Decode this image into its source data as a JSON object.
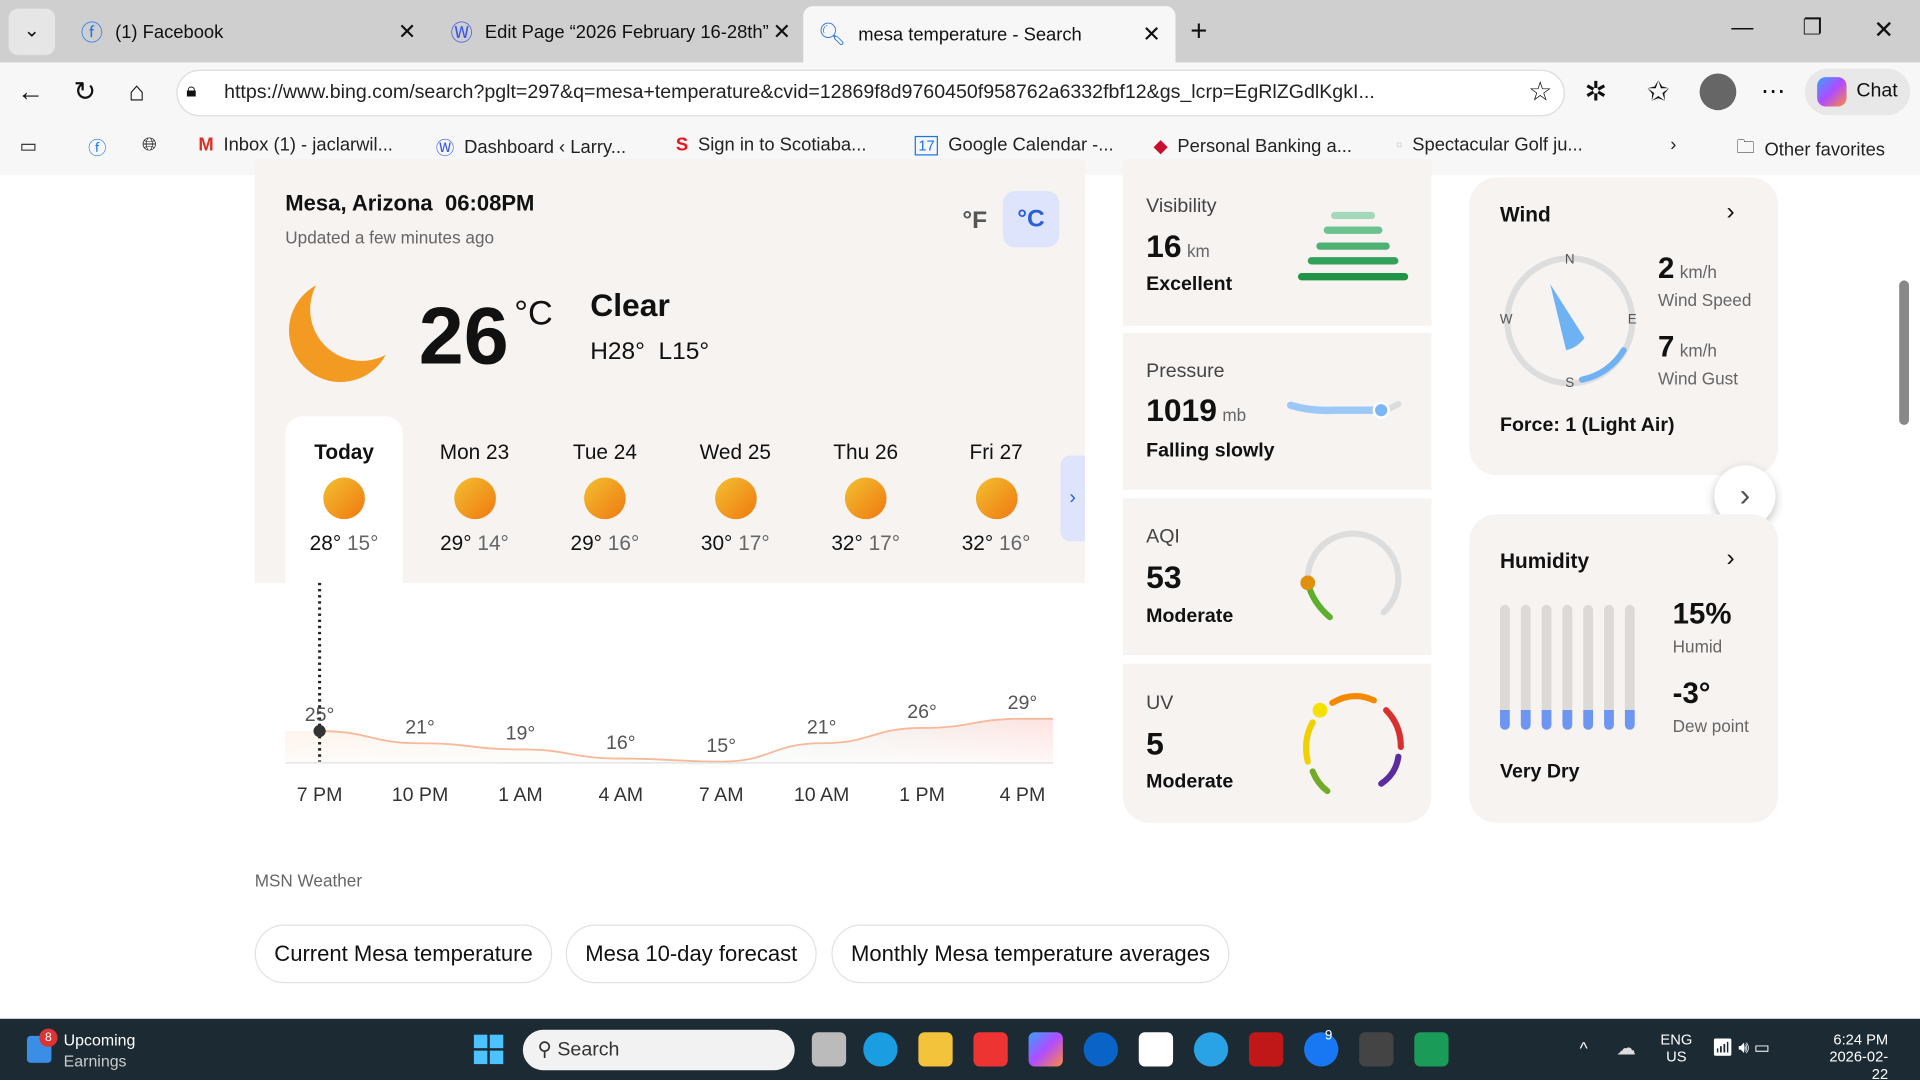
{
  "browser": {
    "tabs": [
      {
        "label": "(1) Facebook"
      },
      {
        "label": "Edit Page “2026 February 16-28th”"
      },
      {
        "label": "mesa temperature - Search"
      }
    ],
    "url": "https://www.bing.com/search?pglt=297&q=mesa+temperature&cvid=12869f8d9760450f958762a6332fbf12&gs_lcrp=EgRlZGdlKgkI...",
    "chat_label": "Chat",
    "bookmarks": [
      {
        "label": "Inbox (1) - jaclarwil..."
      },
      {
        "label": "Dashboard ‹ Larry..."
      },
      {
        "label": "Sign in to Scotiaba..."
      },
      {
        "label": "Google Calendar -..."
      },
      {
        "label": "Personal Banking a..."
      },
      {
        "label": "Spectacular Golf ju..."
      }
    ],
    "other_favorites": "Other favorites"
  },
  "weather": {
    "location": "Mesa, Arizona",
    "time": "06:08PM",
    "updated": "Updated a few minutes ago",
    "unit_f": "°F",
    "unit_c": "°C",
    "active_unit": "C",
    "temp": "26",
    "temp_unit": "°C",
    "condition": "Clear",
    "hilo": "H28°  L15°",
    "days": [
      {
        "name": "Today",
        "hi": "28°",
        "lo": "15°"
      },
      {
        "name": "Mon 23",
        "hi": "29°",
        "lo": "14°"
      },
      {
        "name": "Tue 24",
        "hi": "29°",
        "lo": "16°"
      },
      {
        "name": "Wed 25",
        "hi": "30°",
        "lo": "17°"
      },
      {
        "name": "Thu 26",
        "hi": "32°",
        "lo": "17°"
      },
      {
        "name": "Fri 27",
        "hi": "32°",
        "lo": "16°"
      }
    ],
    "source": "MSN Weather"
  },
  "chart_data": {
    "type": "area",
    "x": [
      "7 PM",
      "10 PM",
      "1 AM",
      "4 AM",
      "7 AM",
      "10 AM",
      "1 PM",
      "4 PM"
    ],
    "values": [
      25,
      21,
      19,
      16,
      15,
      21,
      26,
      29
    ],
    "labels": [
      "25°",
      "21°",
      "19°",
      "16°",
      "15°",
      "21°",
      "26°",
      "29°"
    ]
  },
  "tiles": {
    "visibility": {
      "title": "Visibility",
      "value": "16",
      "unit": "km",
      "status": "Excellent"
    },
    "pressure": {
      "title": "Pressure",
      "value": "1019",
      "unit": "mb",
      "status": "Falling slowly"
    },
    "aqi": {
      "title": "AQI",
      "value": "53",
      "status": "Moderate"
    },
    "uv": {
      "title": "UV",
      "value": "5",
      "status": "Moderate"
    },
    "wind": {
      "title": "Wind",
      "speed": "2",
      "speed_unit": "km/h",
      "speed_label": "Wind Speed",
      "gust": "7",
      "gust_unit": "km/h",
      "gust_label": "Wind Gust",
      "force": "Force: 1 (Light Air)",
      "dirs": [
        "N",
        "E",
        "S",
        "W"
      ]
    },
    "humidity": {
      "title": "Humidity",
      "value": "15%",
      "label": "Humid",
      "dew": "-3°",
      "dew_label": "Dew point",
      "status": "Very Dry"
    }
  },
  "related": [
    "Current Mesa temperature",
    "Mesa 10-day forecast",
    "Monthly Mesa temperature averages"
  ],
  "taskbar": {
    "news_badge": "8",
    "news1": "Upcoming",
    "news2": "Earnings",
    "search": "Search",
    "lang1": "ENG",
    "lang2": "US",
    "time": "6:24 PM",
    "date": "2026-02-22",
    "fb_badge": "9"
  }
}
